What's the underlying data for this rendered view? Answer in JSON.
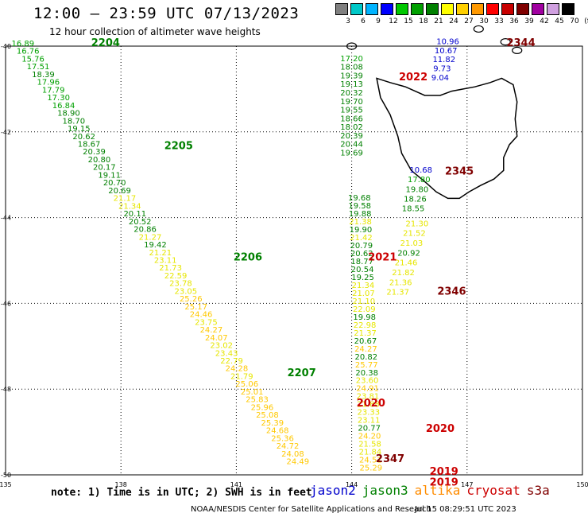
{
  "header": {
    "title": "12:00 — 23:59 UTC 07/13/2023",
    "subtitle": "12 hour collection of altimeter wave heights"
  },
  "scale": {
    "labels": [
      "3",
      "6",
      "9",
      "12",
      "15",
      "18",
      "21",
      "24",
      "27",
      "30",
      "33",
      "36",
      "39",
      "42",
      "45",
      "70",
      "(ft)"
    ],
    "colors": [
      "#808080",
      "#00c8c8",
      "#00b4ff",
      "#0000ff",
      "#00c800",
      "#00a000",
      "#008000",
      "#ffff00",
      "#ffd000",
      "#ff9900",
      "#ff0000",
      "#c80000",
      "#800000",
      "#a000a0",
      "#d0a0e0",
      "#000000"
    ]
  },
  "axes": {
    "lat_labels": [
      "-40",
      "-42",
      "-44",
      "-46",
      "-48",
      "-50"
    ],
    "lon_labels": [
      "135",
      "138",
      "141",
      "144",
      "147",
      "150"
    ]
  },
  "footer": {
    "note": "note: 1) Time is in UTC; 2) SWH is in feet",
    "satellites": [
      {
        "name": "jason2",
        "color": "#0000cc"
      },
      {
        "name": "jason3",
        "color": "#008000"
      },
      {
        "name": "altika",
        "color": "#ff8c00"
      },
      {
        "name": "cryosat",
        "color": "#cc0000"
      },
      {
        "name": "s3a",
        "color": "#800000"
      }
    ],
    "credit": "NOAA/NESDIS Center for Satellite Applications and Research",
    "timestamp": "Jul 15 08:29:51 UTC 2023"
  },
  "map_data": {
    "times": [
      {
        "t": "2204",
        "lon": 137.6,
        "lat": -40.0,
        "color": "#008000"
      },
      {
        "t": "2205",
        "lon": 139.5,
        "lat": -42.4,
        "color": "#008000"
      },
      {
        "t": "2206",
        "lon": 141.3,
        "lat": -45.0,
        "color": "#008000"
      },
      {
        "t": "2207",
        "lon": 142.7,
        "lat": -47.7,
        "color": "#008000"
      },
      {
        "t": "2022",
        "lon": 145.6,
        "lat": -40.8,
        "color": "#cc0000"
      },
      {
        "t": "2021",
        "lon": 144.8,
        "lat": -45.0,
        "color": "#cc0000"
      },
      {
        "t": "2020",
        "lon": 144.5,
        "lat": -48.4,
        "color": "#cc0000"
      },
      {
        "t": "2020",
        "lon": 146.3,
        "lat": -49.0,
        "color": "#cc0000"
      },
      {
        "t": "2019",
        "lon": 146.4,
        "lat": -50.0,
        "color": "#cc0000"
      },
      {
        "t": "2019",
        "lon": 146.4,
        "lat": -50.25,
        "color": "#cc0000"
      },
      {
        "t": "2344",
        "lon": 148.4,
        "lat": -40.0,
        "color": "#800000"
      },
      {
        "t": "2345",
        "lon": 146.8,
        "lat": -43.0,
        "color": "#800000"
      },
      {
        "t": "2346",
        "lon": 146.6,
        "lat": -45.8,
        "color": "#800000"
      },
      {
        "t": "2347",
        "lon": 145.0,
        "lat": -49.7,
        "color": "#800000"
      }
    ],
    "track_jason3_west": [
      "16.89",
      "16.76",
      "15.76",
      "17.51",
      "18.39",
      "17.96",
      "17.79",
      "17.30",
      "16.84",
      "18.90",
      "18.70",
      "19.15",
      "20.62",
      "18.67",
      "20.39",
      "20.80",
      "20.17",
      "19.11",
      "20.70",
      "20.69",
      "21.17",
      "21.34",
      "20.11",
      "20.52",
      "20.86",
      "21.27",
      "19.42",
      "21.21",
      "23.11",
      "21.73",
      "22.59",
      "23.78",
      "23.05",
      "25.26",
      "25.17",
      "24.46",
      "23.75",
      "24.27",
      "24.07",
      "23.02",
      "23.43",
      "22.79",
      "24.28",
      "21.79",
      "25.06",
      "25.01",
      "25.83",
      "25.96",
      "25.08",
      "25.39",
      "24.68",
      "25.36",
      "24.72",
      "24.08",
      "24.49"
    ],
    "track_jason3_east": [
      "17.20",
      "18.08",
      "19.39",
      "19.13",
      "20.32",
      "19.70",
      "19.55",
      "18.66",
      "18.02",
      "20.39",
      "20.44",
      "19.69"
    ],
    "track_altika": [
      "19.68",
      "19.58",
      "19.88",
      "21.38",
      "19.90",
      "21.42",
      "20.79",
      "20.62",
      "18.77",
      "20.54",
      "19.25",
      "21.34",
      "21.07",
      "21.10",
      "22.09",
      "19.98",
      "22.98",
      "21.37",
      "20.67",
      "24.27",
      "20.82",
      "25.77",
      "20.38",
      "23.60",
      "24.91",
      "23.81",
      "21.88",
      "23.33",
      "23.11",
      "20.77",
      "24.20",
      "21.58",
      "21.84",
      "24.51",
      "25.29"
    ],
    "track_jason2": [
      "10.96",
      "10.67",
      "11.82",
      "9.73",
      "9.04",
      "10.68",
      "17.80",
      "19.80",
      "18.26",
      "18.55"
    ],
    "track_altika_east": [
      "21.30",
      "21.52",
      "21.03",
      "20.92",
      "21.46",
      "21.82",
      "21.36",
      "21.37"
    ]
  }
}
